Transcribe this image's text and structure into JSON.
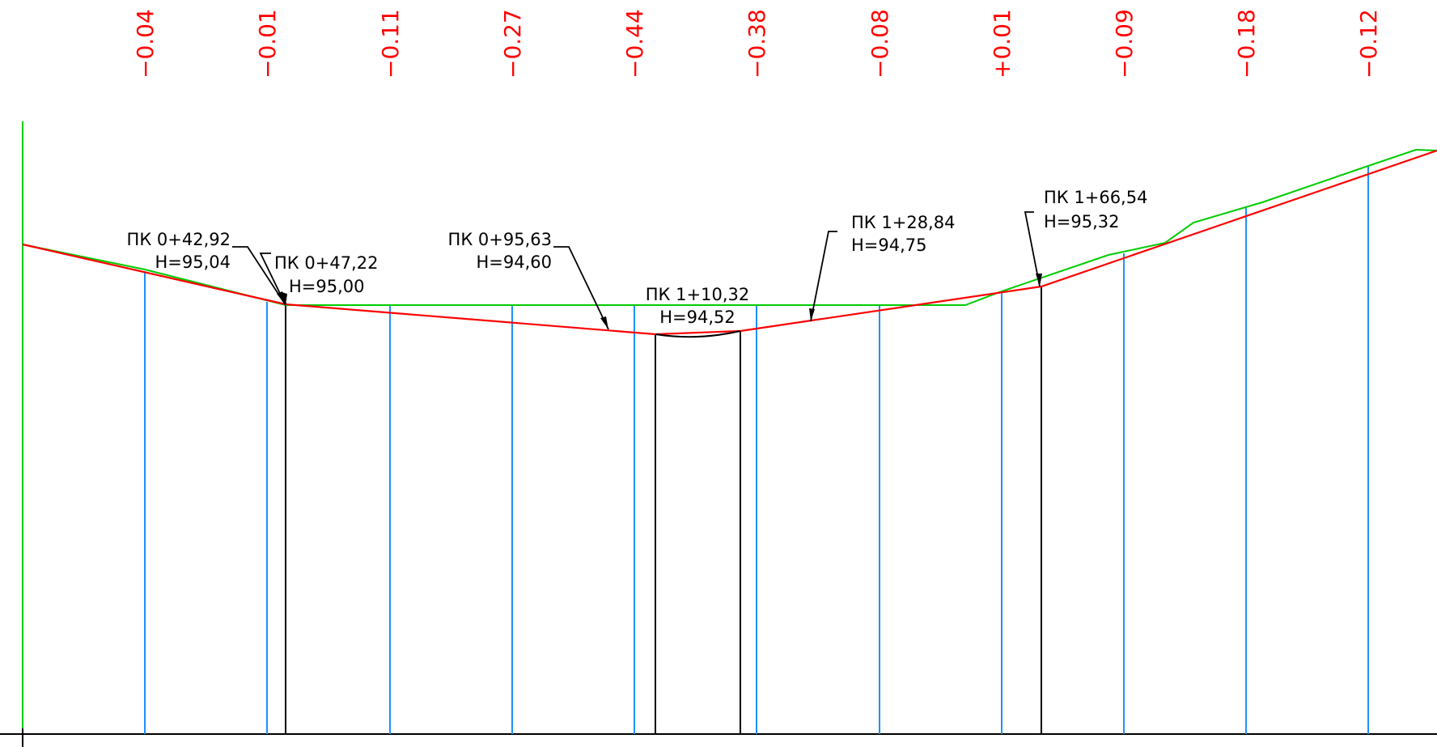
{
  "colors": {
    "background": "#ffffff",
    "existing_ground": "#00cc00",
    "design_line": "#ff0000",
    "station_lines": "#1e90ff",
    "breakpoint_lines": "#000000",
    "deviation_text": "#ff0000",
    "label_text": "#000000",
    "baseline": "#000000"
  },
  "deviations": [
    "−0.04",
    "−0.01",
    "−0.11",
    "−0.27",
    "−0.44",
    "−0.38",
    "−0.08",
    "+0.01",
    "−0.09",
    "−0.18",
    "−0.12"
  ],
  "annotations": [
    {
      "station": "ПК 0+42,92",
      "elevation": "H=95,04"
    },
    {
      "station": "ПК 0+47,22",
      "elevation": "H=95,00"
    },
    {
      "station": "ПК 0+95,63",
      "elevation": "H=94,60"
    },
    {
      "station": "ПК 1+10,32",
      "elevation": "H=94,52"
    },
    {
      "station": "ПК 1+28,84",
      "elevation": "H=94,75"
    },
    {
      "station": "ПК 1+66,54",
      "elevation": "H=95,32"
    }
  ]
}
